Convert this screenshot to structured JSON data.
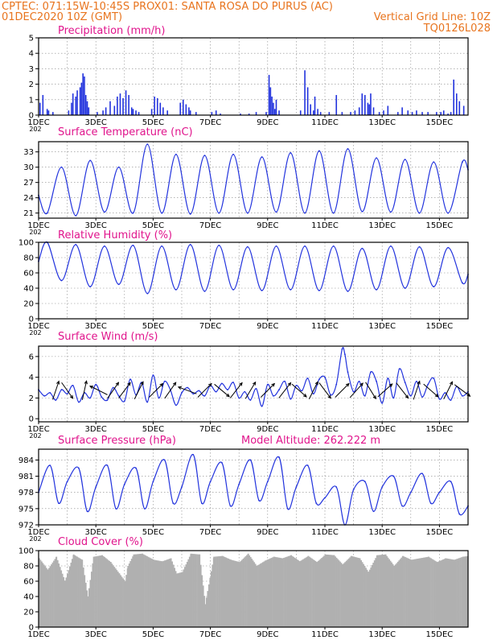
{
  "header": {
    "line1_left": "CPTEC:   071:15W-10:45S   PROX01: SANTA ROSA DO PURUS (AC)",
    "line2_left": "01DEC2020 10Z (GMT)",
    "line2_right": "Vertical Grid Line: 10Z",
    "line3_right": "TQ0126L028"
  },
  "colors": {
    "header": "#e8741e",
    "title": "#e0148c",
    "series": "#2233dd",
    "cloud": "#b0b0b0",
    "grid": "#888888"
  },
  "x_axis": {
    "start": "01DEC2020 10Z",
    "end": "16DEC2020 10Z",
    "tick_labels": [
      "1DEC",
      "3DEC",
      "5DEC",
      "7DEC",
      "9DEC",
      "11DEC",
      "13DEC",
      "15DEC"
    ],
    "tick_days": [
      1,
      3,
      5,
      7,
      9,
      11,
      13,
      15
    ],
    "stub": "202"
  },
  "chart_data": [
    {
      "type": "bar",
      "title": "Precipitation (mm/h)",
      "ylim": [
        0,
        5
      ],
      "yticks": [
        0,
        1,
        2,
        3,
        4,
        5
      ],
      "x": [
        1.05,
        1.15,
        1.3,
        1.35,
        1.5,
        2.05,
        2.15,
        2.2,
        2.3,
        2.35,
        2.45,
        2.5,
        2.55,
        2.6,
        2.65,
        2.7,
        2.75,
        3.05,
        3.25,
        3.35,
        3.5,
        3.65,
        3.75,
        3.85,
        3.95,
        4.05,
        4.15,
        4.25,
        4.3,
        4.4,
        4.5,
        4.95,
        5.05,
        5.15,
        5.25,
        5.35,
        5.5,
        5.95,
        6.05,
        6.15,
        6.25,
        6.3,
        6.5,
        7.05,
        7.2,
        7.35,
        8.05,
        8.35,
        8.6,
        8.95,
        9.05,
        9.1,
        9.15,
        9.2,
        9.25,
        9.3,
        9.4,
        10.15,
        10.3,
        10.4,
        10.5,
        10.6,
        10.65,
        10.75,
        10.85,
        11.15,
        11.4,
        11.6,
        11.9,
        12.05,
        12.2,
        12.3,
        12.4,
        12.5,
        12.55,
        12.6,
        12.7,
        12.9,
        13.05,
        13.2,
        13.55,
        13.7,
        13.9,
        14.05,
        14.2,
        14.4,
        14.6,
        14.9,
        15.05,
        15.15,
        15.3,
        15.4,
        15.5,
        15.6,
        15.7,
        15.85
      ],
      "values": [
        0.8,
        1.3,
        0.4,
        0.3,
        0.2,
        0.3,
        0.8,
        1.4,
        1.2,
        1.6,
        1.8,
        2.1,
        2.7,
        2.5,
        1.3,
        0.9,
        0.5,
        0.2,
        0.3,
        0.5,
        0.9,
        0.6,
        1.2,
        1.4,
        1.1,
        1.6,
        1.3,
        0.5,
        0.4,
        0.3,
        0.2,
        0.4,
        1.2,
        1.1,
        0.8,
        0.5,
        0.3,
        0.8,
        1.0,
        0.7,
        0.5,
        0.3,
        0.2,
        0.2,
        0.3,
        0.1,
        0.1,
        0.1,
        0.2,
        0.2,
        2.6,
        1.8,
        1.2,
        0.8,
        0.4,
        1.0,
        0.3,
        0.3,
        2.9,
        1.8,
        0.7,
        0.3,
        1.2,
        0.4,
        0.2,
        0.2,
        1.3,
        0.2,
        0.2,
        0.3,
        0.5,
        1.4,
        1.3,
        0.8,
        0.7,
        1.4,
        0.5,
        0.2,
        0.3,
        0.6,
        0.2,
        0.5,
        0.3,
        0.2,
        0.3,
        0.2,
        0.2,
        0.2,
        0.2,
        0.3,
        0.1,
        0.2,
        2.3,
        1.4,
        0.9,
        0.6
      ]
    },
    {
      "type": "line",
      "title": "Surface Temperature (nC)",
      "ylim": [
        20,
        35
      ],
      "yticks": [
        21,
        24,
        27,
        30,
        33
      ],
      "x": [
        1.0,
        1.3,
        1.8,
        2.3,
        2.8,
        3.3,
        3.8,
        4.3,
        4.8,
        5.3,
        5.8,
        6.3,
        6.8,
        7.3,
        7.8,
        8.3,
        8.8,
        9.3,
        9.8,
        10.3,
        10.8,
        11.3,
        11.8,
        12.3,
        12.8,
        13.3,
        13.8,
        14.3,
        14.8,
        15.3,
        15.8,
        16.0
      ],
      "values": [
        24.5,
        21.0,
        30.0,
        20.5,
        31.3,
        21.2,
        30.0,
        21.0,
        34.5,
        21.0,
        32.5,
        20.8,
        32.3,
        21.0,
        32.5,
        21.0,
        32.0,
        21.2,
        32.8,
        21.0,
        33.2,
        21.0,
        33.6,
        21.3,
        31.8,
        21.2,
        31.5,
        21.0,
        31.0,
        21.0,
        31.0,
        29.5
      ]
    },
    {
      "type": "line",
      "title": "Relative Humidity (%)",
      "ylim": [
        0,
        100
      ],
      "yticks": [
        0,
        20,
        40,
        60,
        80,
        100
      ],
      "x": [
        1.0,
        1.3,
        1.8,
        2.3,
        2.8,
        3.3,
        3.8,
        4.3,
        4.8,
        5.3,
        5.8,
        6.3,
        6.8,
        7.3,
        7.8,
        8.3,
        8.8,
        9.3,
        9.8,
        10.3,
        10.8,
        11.3,
        11.8,
        12.3,
        12.8,
        13.3,
        13.8,
        14.3,
        14.8,
        15.3,
        15.8,
        16.0
      ],
      "values": [
        75,
        100,
        50,
        97,
        42,
        95,
        45,
        96,
        33,
        95,
        38,
        97,
        36,
        96,
        38,
        94,
        37,
        95,
        38,
        95,
        37,
        95,
        36,
        92,
        38,
        95,
        40,
        94,
        42,
        93,
        47,
        58
      ]
    },
    {
      "type": "line",
      "title": "Surface Wind (m/s)",
      "ylim": [
        -0.3,
        7.0
      ],
      "yticks": [
        0,
        2,
        4,
        6
      ],
      "x": [
        1.0,
        1.2,
        1.4,
        1.6,
        1.8,
        2.0,
        2.2,
        2.4,
        2.6,
        2.8,
        3.0,
        3.2,
        3.4,
        3.6,
        3.8,
        4.0,
        4.2,
        4.4,
        4.6,
        4.8,
        5.0,
        5.2,
        5.4,
        5.6,
        5.8,
        6.0,
        6.2,
        6.4,
        6.6,
        6.8,
        7.0,
        7.2,
        7.4,
        7.6,
        7.8,
        8.0,
        8.2,
        8.4,
        8.6,
        8.8,
        9.0,
        9.2,
        9.4,
        9.6,
        9.8,
        10.0,
        10.2,
        10.4,
        10.6,
        10.8,
        11.0,
        11.2,
        11.4,
        11.6,
        11.7,
        11.8,
        12.0,
        12.2,
        12.4,
        12.6,
        12.8,
        13.0,
        13.2,
        13.4,
        13.6,
        13.8,
        14.0,
        14.2,
        14.4,
        14.6,
        14.8,
        15.0,
        15.2,
        15.4,
        15.6,
        15.8,
        16.0
      ],
      "values": [
        2.8,
        2.2,
        2.5,
        1.8,
        2.8,
        2.4,
        3.2,
        1.6,
        2.5,
        2.0,
        3.3,
        2.1,
        1.8,
        3.0,
        2.2,
        1.7,
        3.8,
        2.3,
        3.5,
        1.6,
        4.2,
        2.0,
        3.6,
        2.8,
        1.3,
        2.5,
        3.0,
        2.4,
        2.7,
        2.2,
        3.2,
        2.6,
        3.4,
        2.8,
        3.5,
        2.0,
        2.6,
        1.8,
        2.9,
        1.2,
        3.3,
        2.2,
        2.8,
        3.6,
        1.9,
        3.2,
        2.7,
        3.9,
        2.4,
        3.8,
        4.0,
        2.3,
        3.3,
        6.7,
        6.2,
        4.5,
        2.6,
        3.6,
        2.2,
        4.5,
        3.6,
        1.5,
        3.9,
        2.0,
        4.8,
        3.5,
        2.2,
        3.6,
        2.1,
        3.3,
        3.9,
        1.9,
        2.5,
        1.8,
        3.1,
        2.2,
        2.6
      ],
      "arrows": {
        "x": [
          1.6,
          2.0,
          2.6,
          3.1,
          3.6,
          4.0,
          4.5,
          5.1,
          5.6,
          6.2,
          6.8,
          7.4,
          7.9,
          8.4,
          9.0,
          9.6,
          10.1,
          10.6,
          11.0,
          11.6,
          12.1,
          12.6,
          13.1,
          13.7,
          14.2,
          14.7,
          15.3,
          15.8
        ],
        "u": [
          0.3,
          0.5,
          0.2,
          -0.8,
          0.7,
          0.6,
          0.5,
          0.9,
          0.7,
          -0.8,
          0.8,
          0.6,
          0.7,
          0.6,
          0.8,
          0.7,
          0.8,
          0.5,
          0.6,
          0.2,
          0.9,
          0.5,
          0.9,
          0.7,
          0.3,
          0.8,
          0.5,
          0.8
        ],
        "v": [
          0.9,
          -0.7,
          0.9,
          0.4,
          1.0,
          0.8,
          1.0,
          0.9,
          1.0,
          0.3,
          0.8,
          -0.5,
          0.9,
          1.0,
          0.8,
          0.9,
          -0.7,
          1.0,
          -0.8,
          0.2,
          1.0,
          -0.8,
          0.8,
          -0.9,
          0.9,
          -0.7,
          1.0,
          -0.6
        ]
      }
    },
    {
      "type": "line",
      "title": "Surface Pressure (hPa)",
      "annotation": "Model Altitude: 262.222 m",
      "ylim": [
        972,
        986
      ],
      "yticks": [
        972,
        975,
        978,
        981,
        984
      ],
      "x": [
        1.0,
        1.4,
        1.7,
        2.0,
        2.4,
        2.7,
        3.0,
        3.4,
        3.7,
        4.0,
        4.4,
        4.7,
        5.0,
        5.4,
        5.7,
        6.0,
        6.4,
        6.7,
        7.0,
        7.4,
        7.7,
        8.0,
        8.4,
        8.7,
        9.0,
        9.4,
        9.7,
        10.0,
        10.4,
        10.7,
        11.0,
        11.4,
        11.7,
        12.0,
        12.4,
        12.7,
        13.0,
        13.4,
        13.7,
        14.0,
        14.4,
        14.7,
        15.0,
        15.4,
        15.7,
        16.0
      ],
      "values": [
        978.0,
        983.0,
        976.0,
        980.0,
        982.5,
        974.5,
        979.0,
        983.0,
        975.0,
        979.5,
        982.5,
        975.0,
        980.0,
        984.0,
        976.0,
        979.0,
        985.0,
        976.0,
        980.0,
        983.5,
        975.5,
        979.5,
        984.0,
        976.5,
        980.0,
        984.5,
        975.0,
        979.0,
        983.0,
        976.0,
        977.0,
        979.0,
        972.0,
        978.5,
        980.0,
        974.5,
        979.0,
        981.0,
        975.5,
        978.0,
        981.5,
        976.0,
        978.0,
        980.0,
        974.0,
        975.5
      ]
    },
    {
      "type": "area",
      "title": "Cloud Cover (%)",
      "ylim": [
        0,
        100
      ],
      "yticks": [
        0,
        20,
        40,
        60,
        80,
        100
      ],
      "x": [
        1.0,
        1.3,
        1.6,
        1.9,
        2.2,
        2.5,
        2.7,
        2.9,
        3.2,
        3.5,
        3.8,
        4.0,
        4.1,
        4.3,
        4.6,
        5.0,
        5.3,
        5.6,
        5.8,
        6.0,
        6.3,
        6.6,
        6.8,
        7.1,
        7.4,
        7.7,
        8.0,
        8.3,
        8.6,
        8.9,
        9.2,
        9.5,
        9.8,
        10.1,
        10.4,
        10.7,
        11.0,
        11.3,
        11.6,
        11.9,
        12.2,
        12.5,
        12.8,
        13.1,
        13.4,
        13.7,
        14.0,
        14.3,
        14.6,
        14.9,
        15.2,
        15.5,
        15.8,
        16.0
      ],
      "values": [
        90,
        75,
        92,
        60,
        95,
        88,
        40,
        92,
        94,
        85,
        70,
        60,
        80,
        95,
        96,
        88,
        86,
        90,
        70,
        72,
        96,
        95,
        30,
        92,
        93,
        88,
        85,
        96,
        80,
        87,
        92,
        90,
        94,
        86,
        93,
        85,
        95,
        94,
        82,
        93,
        90,
        72,
        94,
        95,
        80,
        93,
        88,
        90,
        92,
        85,
        90,
        88,
        92,
        93
      ]
    }
  ]
}
